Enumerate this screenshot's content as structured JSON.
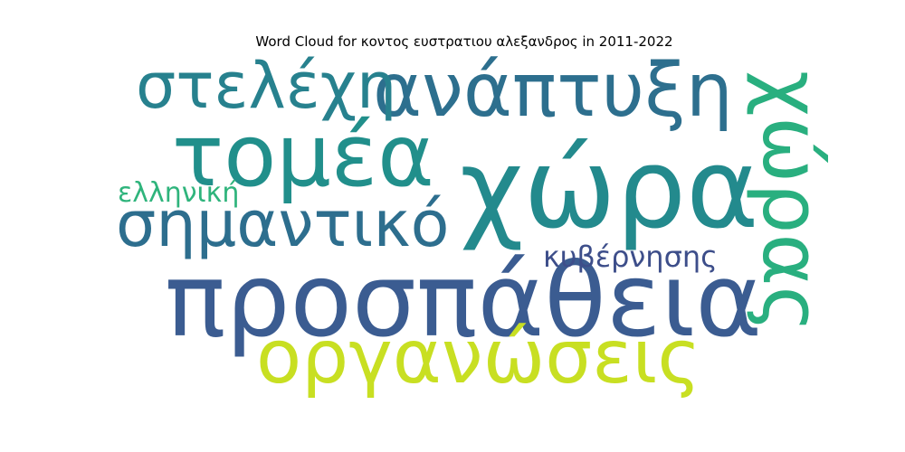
{
  "title": "Word Cloud for κοντος ευστρατιου αλεξανδρος in 2011-2022",
  "words": [
    {
      "text": "χώρα",
      "color": "#238a8d"
    },
    {
      "text": "προσπάθεια",
      "color": "#3b5c91"
    },
    {
      "text": "τομέα",
      "color": "#218f8b"
    },
    {
      "text": "ανάπτυξη",
      "color": "#2d6f8e"
    },
    {
      "text": "οργανώσεις",
      "color": "#c8df22"
    },
    {
      "text": "στελέχη",
      "color": "#27818e"
    },
    {
      "text": "σημαντικό",
      "color": "#2d6e8e"
    },
    {
      "text": "ελληνική",
      "color": "#2fb47c"
    },
    {
      "text": "κυβέρνησης",
      "color": "#3d4e8a"
    },
    {
      "text": "χώρας",
      "color": "#29af7f"
    }
  ]
}
